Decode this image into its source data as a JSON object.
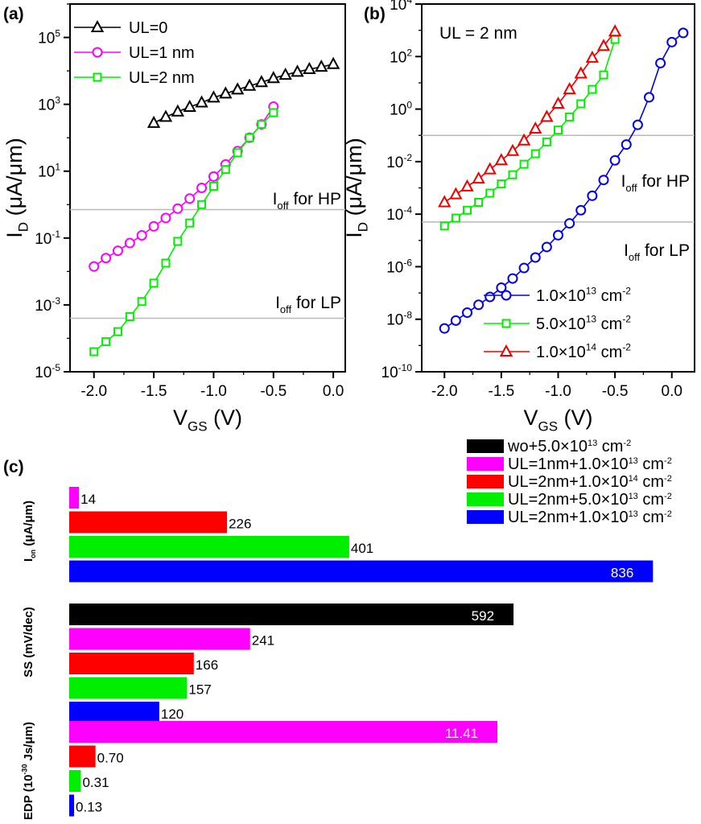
{
  "chart_data": [
    {
      "panel": "(a)",
      "type": "line",
      "xlabel": "V_GS (V)",
      "ylabel": "I_D (μA/μm)",
      "xlim": [
        -2.2,
        0.1
      ],
      "ylim_log10": [
        -5,
        6
      ],
      "yscale": "log",
      "x_ticks": [
        "-2.0",
        "-1.5",
        "-1.0",
        "-0.5",
        "0.0"
      ],
      "y_ticks": [
        "10^-5",
        "10^-3",
        "10^-1",
        "10^1",
        "10^3",
        "10^5"
      ],
      "legend_position": "top-left",
      "reference_lines": [
        {
          "label": "I_off for HP",
          "y_log10": -0.15
        },
        {
          "label": "I_off for LP",
          "y_log10": -3.4
        }
      ],
      "series": [
        {
          "name": "UL=0",
          "marker": "triangle",
          "color": "#000000",
          "x": [
            -1.5,
            -1.4,
            -1.3,
            -1.2,
            -1.1,
            -1.0,
            -0.9,
            -0.8,
            -0.7,
            -0.6,
            -0.5,
            -0.4,
            -0.3,
            -0.2,
            -0.1,
            0.0
          ],
          "y_log10": [
            2.44,
            2.62,
            2.78,
            2.92,
            3.05,
            3.2,
            3.32,
            3.44,
            3.55,
            3.66,
            3.78,
            3.88,
            3.97,
            4.05,
            4.12,
            4.2
          ]
        },
        {
          "name": "UL=1 nm",
          "marker": "circle",
          "color": "#ff00ff",
          "x": [
            -2.0,
            -1.9,
            -1.8,
            -1.7,
            -1.6,
            -1.5,
            -1.4,
            -1.3,
            -1.2,
            -1.1,
            -1.0,
            -0.9,
            -0.8,
            -0.7,
            -0.6,
            -0.5
          ],
          "y_log10": [
            -1.85,
            -1.6,
            -1.38,
            -1.15,
            -0.92,
            -0.65,
            -0.4,
            -0.12,
            0.18,
            0.5,
            0.84,
            1.2,
            1.6,
            2.0,
            2.4,
            2.93
          ]
        },
        {
          "name": "UL=2 nm",
          "marker": "square",
          "color": "#00ee00",
          "x": [
            -2.0,
            -1.9,
            -1.8,
            -1.7,
            -1.6,
            -1.5,
            -1.4,
            -1.3,
            -1.2,
            -1.1,
            -1.0,
            -0.9,
            -0.8,
            -0.7,
            -0.6,
            -0.5
          ],
          "y_log10": [
            -4.4,
            -4.1,
            -3.8,
            -3.35,
            -2.9,
            -2.35,
            -1.75,
            -1.1,
            -0.55,
            0.0,
            0.55,
            1.05,
            1.55,
            2.0,
            2.4,
            2.75
          ]
        }
      ]
    },
    {
      "panel": "(b)",
      "type": "line",
      "xlabel": "V_GS (V)",
      "ylabel": "I_D (μA/μm)",
      "xlim": [
        -2.2,
        0.2
      ],
      "ylim_log10": [
        -10,
        4
      ],
      "yscale": "log",
      "x_ticks": [
        "-2.0",
        "-1.5",
        "-1.0",
        "-0.5",
        "0.0"
      ],
      "y_ticks": [
        "10^-10",
        "10^-8",
        "10^-6",
        "10^-4",
        "10^-2",
        "10^0",
        "10^2",
        "10^4"
      ],
      "annotation": "UL = 2 nm",
      "legend_position": "bottom-right",
      "reference_lines": [
        {
          "label": "I_off for HP",
          "y_log10": -1
        },
        {
          "label": "I_off for LP",
          "y_log10": -4.3
        }
      ],
      "series": [
        {
          "name": "1.0×10^13 cm^-2",
          "marker": "circle",
          "color": "#0000ee",
          "x": [
            -2.0,
            -1.9,
            -1.8,
            -1.7,
            -1.6,
            -1.5,
            -1.4,
            -1.3,
            -1.2,
            -1.1,
            -1.0,
            -0.9,
            -0.8,
            -0.7,
            -0.6,
            -0.5,
            -0.4,
            -0.3,
            -0.2,
            -0.1,
            0.0,
            0.1
          ],
          "y_log10": [
            -8.35,
            -8.05,
            -7.75,
            -7.45,
            -7.15,
            -6.8,
            -6.45,
            -6.05,
            -5.65,
            -5.25,
            -4.8,
            -4.35,
            -3.85,
            -3.3,
            -2.7,
            -1.95,
            -1.35,
            -0.6,
            0.45,
            1.75,
            2.55,
            2.9
          ]
        },
        {
          "name": "5.0×10^13 cm^-2",
          "marker": "square",
          "color": "#00ee00",
          "x": [
            -2.0,
            -1.9,
            -1.8,
            -1.7,
            -1.6,
            -1.5,
            -1.4,
            -1.3,
            -1.2,
            -1.1,
            -1.0,
            -0.9,
            -0.8,
            -0.7,
            -0.6,
            -0.5
          ],
          "y_log10": [
            -4.45,
            -4.15,
            -3.85,
            -3.55,
            -3.2,
            -2.85,
            -2.5,
            -2.1,
            -1.7,
            -1.25,
            -0.8,
            -0.3,
            0.2,
            0.75,
            1.3,
            2.65
          ]
        },
        {
          "name": "1.0×10^14 cm^-2",
          "marker": "triangle",
          "color": "#ee0000",
          "x": [
            -2.0,
            -1.9,
            -1.8,
            -1.7,
            -1.6,
            -1.5,
            -1.4,
            -1.3,
            -1.2,
            -1.1,
            -1.0,
            -0.9,
            -0.8,
            -0.7,
            -0.6,
            -0.5
          ],
          "y_log10": [
            -3.55,
            -3.25,
            -2.95,
            -2.65,
            -2.3,
            -1.95,
            -1.6,
            -1.2,
            -0.75,
            -0.3,
            0.2,
            0.75,
            1.35,
            1.95,
            2.4,
            2.95
          ]
        }
      ]
    },
    {
      "panel": "(c)",
      "type": "bar",
      "orientation": "horizontal",
      "legend": [
        {
          "name": "wo+5.0×10^13 cm^-2",
          "color": "#000000"
        },
        {
          "name": "UL=1nm+1.0×10^13 cm^-2",
          "color": "#ff00ff"
        },
        {
          "name": "UL=2nm+1.0×10^14 cm^-2",
          "color": "#ff0000"
        },
        {
          "name": "UL=2nm+5.0×10^13 cm^-2",
          "color": "#00ee00"
        },
        {
          "name": "UL=2nm+1.0×10^13 cm^-2",
          "color": "#0000ff"
        }
      ],
      "legend_position": "top-right",
      "groups": [
        {
          "label": "I_on (μA/μm)",
          "max": 876,
          "bars": [
            {
              "color": "#ff00ff",
              "value": 14,
              "label": "14"
            },
            {
              "color": "#ff0000",
              "value": 226,
              "label": "226"
            },
            {
              "color": "#00ee00",
              "value": 401,
              "label": "401"
            },
            {
              "color": "#0000ff",
              "value": 836,
              "label": "836"
            }
          ]
        },
        {
          "label": "SS (mV/dec)",
          "max": 815,
          "bars": [
            {
              "color": "#000000",
              "value": 592,
              "label": "592"
            },
            {
              "color": "#ff00ff",
              "value": 241,
              "label": "241"
            },
            {
              "color": "#ff0000",
              "value": 166,
              "label": "166"
            },
            {
              "color": "#00ee00",
              "value": 157,
              "label": "157"
            },
            {
              "color": "#0000ff",
              "value": 120,
              "label": "120"
            }
          ]
        },
        {
          "label": "EDP (10^-30 Js/μm)",
          "max": 16.3,
          "bars": [
            {
              "color": "#ff00ff",
              "value": 11.41,
              "label": "11.41"
            },
            {
              "color": "#ff0000",
              "value": 0.7,
              "label": "0.70"
            },
            {
              "color": "#00ee00",
              "value": 0.31,
              "label": "0.31"
            },
            {
              "color": "#0000ff",
              "value": 0.13,
              "label": "0.13"
            }
          ]
        }
      ]
    }
  ]
}
